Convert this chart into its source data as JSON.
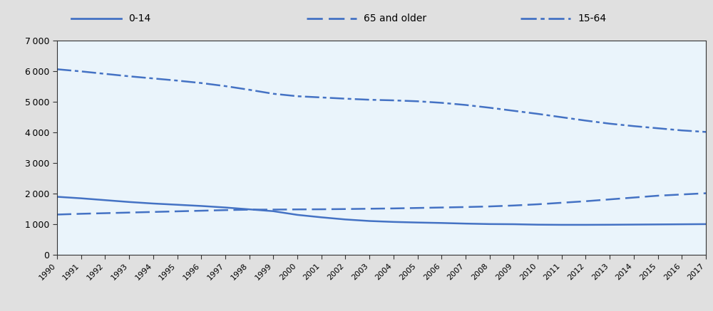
{
  "years": [
    1990,
    1991,
    1992,
    1993,
    1994,
    1995,
    1996,
    1997,
    1998,
    1999,
    2000,
    2001,
    2002,
    2003,
    2004,
    2005,
    2006,
    2007,
    2008,
    2009,
    2010,
    2011,
    2012,
    2013,
    2014,
    2015,
    2016,
    2017
  ],
  "youth_0_14": [
    1900,
    1850,
    1790,
    1730,
    1680,
    1640,
    1600,
    1550,
    1490,
    1430,
    1310,
    1230,
    1160,
    1110,
    1080,
    1060,
    1045,
    1025,
    1010,
    1005,
    990,
    985,
    985,
    988,
    993,
    998,
    1003,
    1008
  ],
  "elderly_65plus": [
    1320,
    1345,
    1365,
    1385,
    1405,
    1425,
    1445,
    1465,
    1480,
    1482,
    1488,
    1492,
    1500,
    1510,
    1520,
    1535,
    1550,
    1565,
    1585,
    1615,
    1655,
    1705,
    1755,
    1815,
    1875,
    1935,
    1975,
    2015
  ],
  "working_15_64": [
    6060,
    5990,
    5910,
    5830,
    5760,
    5690,
    5610,
    5510,
    5390,
    5260,
    5180,
    5140,
    5100,
    5065,
    5045,
    5015,
    4965,
    4895,
    4805,
    4705,
    4605,
    4495,
    4385,
    4285,
    4205,
    4135,
    4065,
    4015
  ],
  "line_color": "#4472C4",
  "plot_bg": "#eaf4fb",
  "legend_bg": "#e0e0e0",
  "fig_bg": "#e0e0e0",
  "ylim": [
    0,
    7000
  ],
  "yticks": [
    0,
    1000,
    2000,
    3000,
    4000,
    5000,
    6000,
    7000
  ],
  "label_0_14": "0-14",
  "label_65plus": "65 and older",
  "label_15_64": "15-64"
}
